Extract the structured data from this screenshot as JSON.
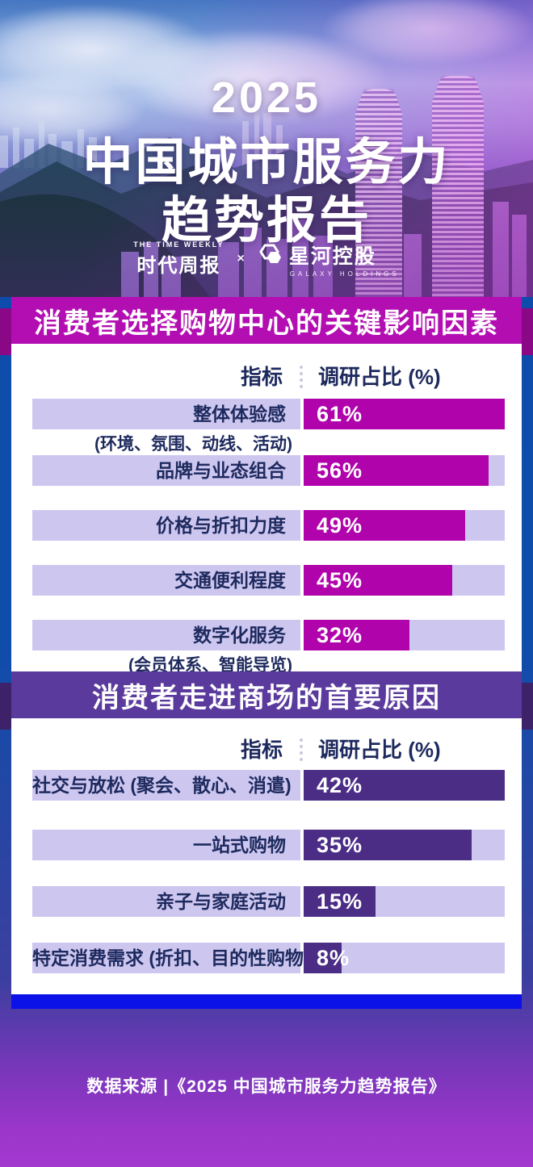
{
  "hero": {
    "year": "2025",
    "title_line1": "中国城市服务力",
    "title_line2": "趋势报告",
    "brand_left_top": "THE TIME WEEKLY",
    "brand_left": "时代周报",
    "brand_sep": "×",
    "brand_right": "星河控股",
    "brand_right_sub": "GALAXY HOLDINGS"
  },
  "footer": {
    "source": "数据来源 |《2025 中国城市服务力趋势报告》"
  },
  "colors": {
    "banner_magenta": "#b30eb1",
    "banner_magenta_fold": "#8a0886",
    "bar_magenta": "#b103ac",
    "banner_purple": "#5a3a9c",
    "banner_purple_fold": "#3e2269",
    "bar_purple": "#4b2d86",
    "track_lavender": "#cdc7f0",
    "text_navy": "#1e2a5e",
    "card_white": "#ffffff",
    "strip_blue": "#0a12e8"
  },
  "chart_data": [
    {
      "type": "bar",
      "orientation": "horizontal",
      "title": "消费者选择购物中心的关键影响因素",
      "columns": [
        "指标",
        "调研占比 (%)"
      ],
      "categories": [
        "整体体验感",
        "品牌与业态组合",
        "价格与折扣力度",
        "交通便利程度",
        "数字化服务"
      ],
      "notes": [
        "(环境、氛围、动线、活动)",
        "",
        "",
        "",
        "(会员体系、智能导览)"
      ],
      "values": [
        61,
        56,
        49,
        45,
        32
      ],
      "unit": "%",
      "xlim": [
        0,
        61
      ],
      "bar_color": "#b103ac",
      "track_color": "#cdc7f0"
    },
    {
      "type": "bar",
      "orientation": "horizontal",
      "title": "消费者走进商场的首要原因",
      "columns": [
        "指标",
        "调研占比 (%)"
      ],
      "categories": [
        "社交与放松 (聚会、散心、消遣)",
        "一站式购物",
        "亲子与家庭活动",
        "特定消费需求 (折扣、目的性购物)"
      ],
      "notes": [
        "",
        "",
        "",
        ""
      ],
      "values": [
        42,
        35,
        15,
        8
      ],
      "unit": "%",
      "xlim": [
        0,
        42
      ],
      "bar_color": "#4b2d86",
      "track_color": "#cdc7f0"
    }
  ]
}
